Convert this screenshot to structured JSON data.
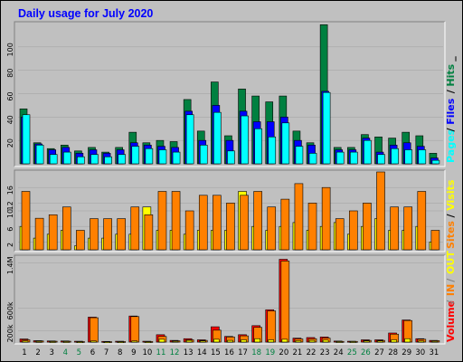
{
  "title": "Daily usage for July 2020",
  "colors": {
    "background": "#c0c0c0",
    "title": "#0000ff",
    "pages": "#00ffff",
    "files": "#0000ff",
    "hits": "#008040",
    "visits": "#ffff00",
    "sites": "#ff8000",
    "kbin": "#ff8000",
    "kbout": "#ffff00",
    "volume": "#ff0000",
    "legend_grey": "#808080"
  },
  "chart_data": [
    {
      "type": "bar",
      "panel": "hits",
      "categories": [
        "1",
        "2",
        "3",
        "4",
        "5",
        "6",
        "7",
        "8",
        "9",
        "10",
        "11",
        "12",
        "13",
        "14",
        "15",
        "16",
        "17",
        "18",
        "19",
        "20",
        "21",
        "22",
        "23",
        "24",
        "25",
        "26",
        "27",
        "28",
        "29",
        "30",
        "31"
      ],
      "weekend_days": [
        "4",
        "5",
        "11",
        "12",
        "18",
        "19",
        "25",
        "26"
      ],
      "yticks": [
        "20",
        "40",
        "60",
        "80",
        "100"
      ],
      "ylim": [
        0,
        120
      ],
      "legend": [
        "Pages",
        "/",
        "Files",
        "/",
        "Hits",
        "_"
      ],
      "series": [
        {
          "name": "Hits",
          "values": [
            47,
            18,
            13,
            16,
            11,
            14,
            10,
            14,
            27,
            18,
            20,
            19,
            55,
            28,
            70,
            24,
            64,
            58,
            53,
            58,
            28,
            18,
            119,
            14,
            14,
            25,
            23,
            22,
            27,
            24,
            9
          ]
        },
        {
          "name": "Files",
          "values": [
            40,
            17,
            12,
            14,
            9,
            12,
            9,
            12,
            18,
            16,
            15,
            14,
            45,
            20,
            50,
            20,
            45,
            36,
            36,
            40,
            20,
            16,
            62,
            12,
            12,
            22,
            10,
            16,
            18,
            15,
            5
          ]
        },
        {
          "name": "Pages",
          "values": [
            42,
            16,
            8,
            10,
            6,
            8,
            6,
            8,
            15,
            13,
            12,
            10,
            42,
            16,
            44,
            11,
            41,
            30,
            23,
            35,
            15,
            9,
            61,
            10,
            10,
            20,
            8,
            13,
            12,
            12,
            3
          ]
        }
      ]
    },
    {
      "type": "bar",
      "panel": "visits",
      "categories": [
        "1",
        "2",
        "3",
        "4",
        "5",
        "6",
        "7",
        "8",
        "9",
        "10",
        "11",
        "12",
        "13",
        "14",
        "15",
        "16",
        "17",
        "18",
        "19",
        "20",
        "21",
        "22",
        "23",
        "24",
        "25",
        "26",
        "27",
        "28",
        "29",
        "30",
        "31"
      ],
      "yticks": [
        "2",
        "6",
        "10",
        "12",
        "16"
      ],
      "ylim": [
        0,
        20
      ],
      "legend": [
        "Visits",
        "/",
        "Sites"
      ],
      "series": [
        {
          "name": "Sites",
          "values": [
            15,
            8.1,
            9,
            11,
            5,
            8,
            8,
            8,
            11,
            9,
            15,
            15,
            10,
            14,
            14,
            12,
            14,
            15,
            11,
            13,
            17,
            12,
            16,
            8,
            10,
            12,
            20,
            11,
            11,
            15,
            5
          ]
        },
        {
          "name": "Visits",
          "values": [
            6,
            3,
            4,
            5,
            1,
            3,
            3,
            4,
            4,
            11,
            5,
            5,
            4,
            5,
            5,
            5,
            15,
            6,
            5,
            6,
            7,
            5,
            6,
            7,
            4,
            6,
            8,
            5,
            5,
            6,
            2
          ]
        }
      ]
    },
    {
      "type": "bar",
      "panel": "volume",
      "categories": [
        "1",
        "2",
        "3",
        "4",
        "5",
        "6",
        "7",
        "8",
        "9",
        "10",
        "11",
        "12",
        "13",
        "14",
        "15",
        "16",
        "17",
        "18",
        "19",
        "20",
        "21",
        "22",
        "23",
        "24",
        "25",
        "26",
        "27",
        "28",
        "29",
        "30",
        "31"
      ],
      "yticks": [
        "200k",
        "600k",
        "1.4M"
      ],
      "ylim": [
        0,
        1500000
      ],
      "legend": [
        "Volume",
        "/",
        "IN",
        "/",
        "OUT"
      ],
      "series": [
        {
          "name": "Volume",
          "values": [
            55000,
            25000,
            20000,
            20000,
            15000,
            440000,
            12000,
            15000,
            460000,
            15000,
            130000,
            30000,
            60000,
            40000,
            270000,
            100000,
            130000,
            290000,
            570000,
            1460000,
            70000,
            80000,
            90000,
            18000,
            15000,
            40000,
            40000,
            160000,
            390000,
            60000,
            30000
          ]
        },
        {
          "name": "IN",
          "values": [
            40000,
            20000,
            15000,
            15000,
            10000,
            430000,
            8000,
            10000,
            450000,
            10000,
            100000,
            22000,
            40000,
            30000,
            210000,
            90000,
            110000,
            260000,
            550000,
            1430000,
            55000,
            60000,
            70000,
            12000,
            12000,
            30000,
            30000,
            140000,
            380000,
            50000,
            25000
          ]
        },
        {
          "name": "OUT",
          "values": [
            20000,
            10000,
            8000,
            8000,
            6000,
            20000,
            5000,
            6000,
            20000,
            6000,
            50000,
            15000,
            30000,
            20000,
            50000,
            30000,
            40000,
            60000,
            40000,
            50000,
            25000,
            30000,
            35000,
            8000,
            8000,
            20000,
            20000,
            40000,
            60000,
            20000,
            15000
          ]
        }
      ]
    }
  ]
}
